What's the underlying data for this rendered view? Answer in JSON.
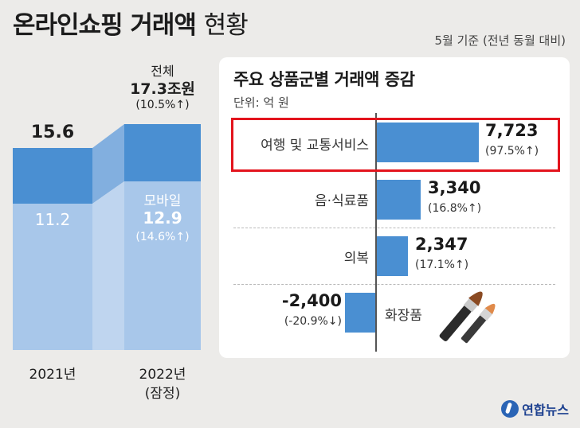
{
  "header": {
    "title_bold": "온라인쇼핑 거래액",
    "title_light": "현황",
    "subtitle": "5월 기준 (전년 동월 대비)"
  },
  "colors": {
    "bar_dark": "#4a8fd2",
    "bar_light": "#a8c7ea",
    "highlight": "#e3141d",
    "background": "#ecebe9"
  },
  "chart_data": [
    {
      "type": "bar",
      "stacked": true,
      "categories": [
        "2021년",
        "2022년\n(잠정)"
      ],
      "series": [
        {
          "name": "모바일",
          "values": [
            11.2,
            12.9
          ]
        },
        {
          "name": "",
          "values": [
            4.4,
            4.4
          ]
        }
      ],
      "totals": [
        15.6,
        17.3
      ],
      "labels": {
        "total_2021": "15.6",
        "mobile_2021": "11.2",
        "total_label": "전체",
        "total_2022": "17.3조원",
        "total_2022_change": "(10.5%↑)",
        "mobile_label": "모바일",
        "mobile_2022": "12.9",
        "mobile_2022_change": "(14.6%↑)"
      },
      "x_labels": [
        "2021년",
        "2022년",
        "(잠정)"
      ]
    },
    {
      "type": "bar",
      "orientation": "horizontal",
      "title": "주요 상품군별 거래액 증감",
      "unit": "단위: 억 원",
      "categories": [
        "여행 및 교통서비스",
        "음·식료품",
        "의복",
        "화장품"
      ],
      "values": [
        7723,
        3340,
        2347,
        -2400
      ],
      "value_labels": [
        "7,723",
        "3,340",
        "2,347",
        "-2,400"
      ],
      "change_labels": [
        "(97.5%↑)",
        "(16.8%↑)",
        "(17.1%↑)",
        "(-20.9%↓)"
      ],
      "highlighted": "여행 및 교통서비스"
    }
  ],
  "logo": {
    "text": "연합뉴스"
  }
}
